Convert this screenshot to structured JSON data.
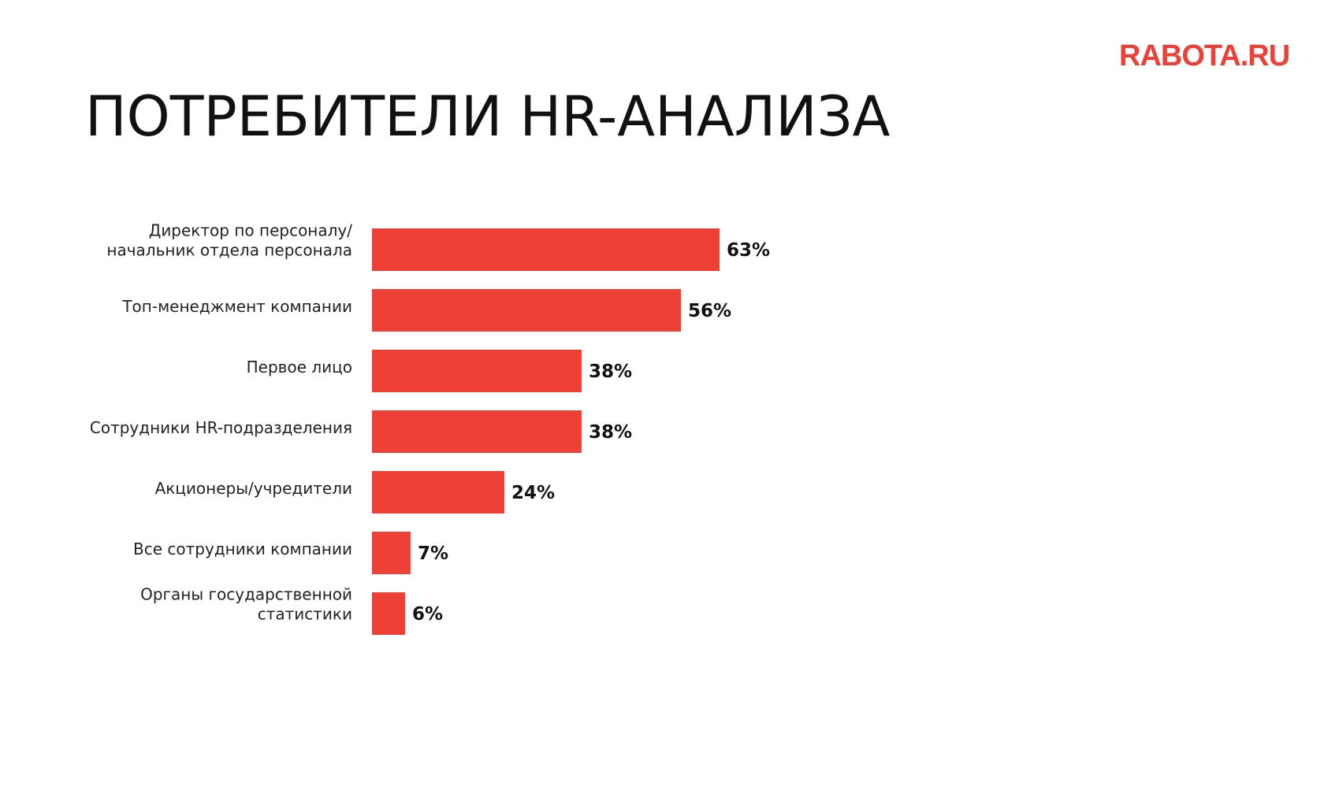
{
  "logo": {
    "text": "RABOTA.RU",
    "color": "#ee4036"
  },
  "title": "ПОТРЕБИТЕЛИ HR-АНАЛИЗА",
  "chart_data": {
    "type": "bar",
    "orientation": "horizontal",
    "bar_color": "#ee4036",
    "value_suffix": "%",
    "xlim": [
      0,
      100
    ],
    "grid": false,
    "legend": "none",
    "categories": [
      [
        "Директор по персоналу/",
        "начальник отдела персонала"
      ],
      [
        "Топ-менеджмент компании"
      ],
      [
        "Первое лицо"
      ],
      [
        "Сотрудники HR-подразделения"
      ],
      [
        "Акционеры/учредители"
      ],
      [
        "Все сотрудники компании"
      ],
      [
        "Органы государственной",
        "статистики"
      ]
    ],
    "values": [
      63,
      56,
      38,
      38,
      24,
      7,
      6
    ]
  }
}
